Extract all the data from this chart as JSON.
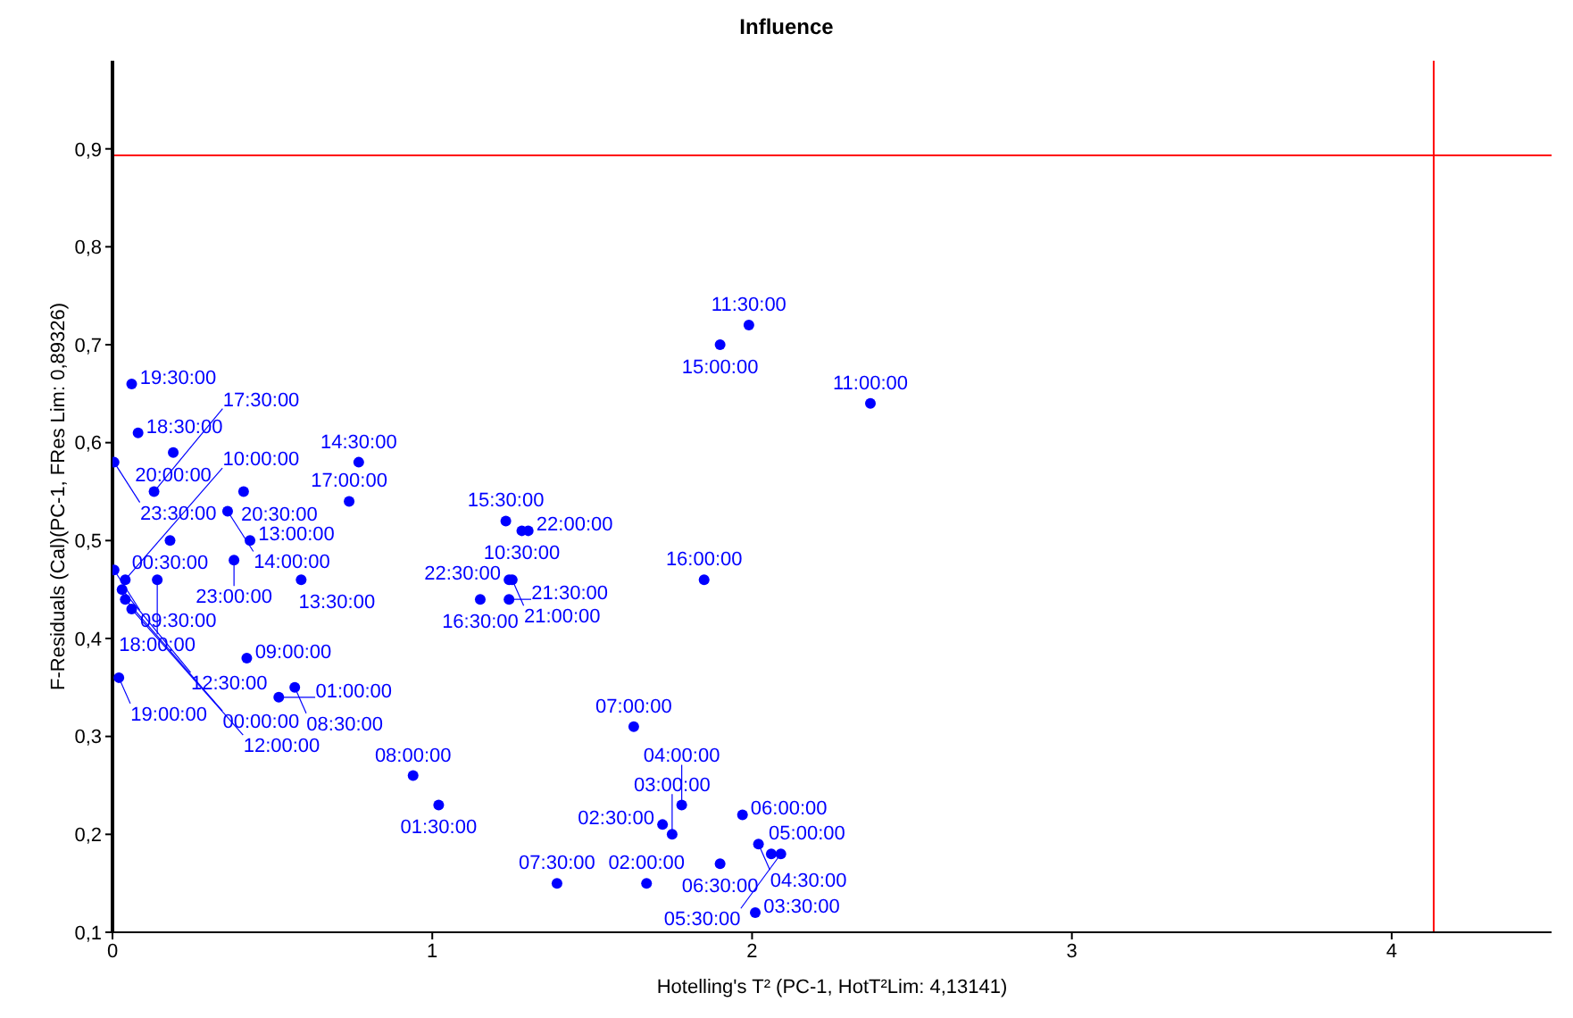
{
  "chart_data": {
    "type": "scatter",
    "title": "Influence",
    "xlabel": "Hotelling's T² (PC-1, HotT²Lim: 4,13141)",
    "ylabel": "F-Residuals (Cal)(PC-1, FRes Lim: 0,89326)",
    "xlim": [
      0,
      4.5
    ],
    "xticks": [
      0,
      1,
      2,
      3,
      4
    ],
    "ylim": [
      0.1,
      0.99
    ],
    "yticks": [
      {
        "value": 0.1,
        "label": "0,1"
      },
      {
        "value": 0.2,
        "label": "0,2"
      },
      {
        "value": 0.3,
        "label": "0,3"
      },
      {
        "value": 0.4,
        "label": "0,4"
      },
      {
        "value": 0.5,
        "label": "0,5"
      },
      {
        "value": 0.6,
        "label": "0,6"
      },
      {
        "value": 0.7,
        "label": "0,7"
      },
      {
        "value": 0.8,
        "label": "0,8"
      },
      {
        "value": 0.9,
        "label": "0,9"
      }
    ],
    "grid": false,
    "legend": false,
    "marker": "circle",
    "ref_lines": [
      {
        "axis": "x",
        "value": 4.13141,
        "color": "#ff0000"
      },
      {
        "axis": "y",
        "value": 0.89326,
        "color": "#ff0000"
      }
    ],
    "series": [
      {
        "color": "#0000ff",
        "x": [
          1.99,
          1.9,
          2.37,
          1.85,
          1.63,
          1.23,
          1.28,
          1.3,
          1.24,
          1.15,
          1.24,
          1.25,
          0.06,
          0.08,
          0.005,
          0.19,
          0.13,
          0.77,
          0.74,
          0.41,
          0.36,
          0.18,
          0.43,
          0.38,
          0.59,
          0.005,
          0.04,
          0.14,
          0.03,
          0.04,
          0.06,
          0.02,
          0.42,
          0.52,
          0.57,
          0.94,
          1.02,
          1.39,
          1.67,
          1.72,
          1.75,
          1.78,
          1.9,
          2.01,
          1.97,
          2.02,
          2.06,
          2.09
        ],
        "values": [
          0.72,
          0.7,
          0.64,
          0.46,
          0.31,
          0.52,
          0.51,
          0.51,
          0.46,
          0.44,
          0.44,
          0.46,
          0.66,
          0.61,
          0.58,
          0.59,
          0.55,
          0.58,
          0.54,
          0.55,
          0.53,
          0.5,
          0.5,
          0.48,
          0.46,
          0.47,
          0.46,
          0.46,
          0.45,
          0.44,
          0.43,
          0.36,
          0.38,
          0.34,
          0.35,
          0.26,
          0.23,
          0.15,
          0.15,
          0.21,
          0.2,
          0.23,
          0.17,
          0.12,
          0.22,
          0.19,
          0.18,
          0.18
        ]
      }
    ],
    "annotations": [
      {
        "text": "11:30:00",
        "x": 1.99,
        "y": 0.72
      },
      {
        "text": "15:00:00",
        "x": 1.9,
        "y": 0.7
      },
      {
        "text": "11:00:00",
        "x": 2.37,
        "y": 0.64
      },
      {
        "text": "16:00:00",
        "x": 1.85,
        "y": 0.46
      },
      {
        "text": "07:00:00",
        "x": 1.63,
        "y": 0.31
      },
      {
        "text": "15:30:00",
        "x": 1.23,
        "y": 0.52
      },
      {
        "text": "10:30:00",
        "x": 1.28,
        "y": 0.51
      },
      {
        "text": "22:00:00",
        "x": 1.3,
        "y": 0.51
      },
      {
        "text": "22:30:00",
        "x": 1.24,
        "y": 0.46
      },
      {
        "text": "16:30:00",
        "x": 1.15,
        "y": 0.44
      },
      {
        "text": "21:30:00",
        "x": 1.24,
        "y": 0.44
      },
      {
        "text": "21:00:00",
        "x": 1.25,
        "y": 0.46
      },
      {
        "text": "19:30:00",
        "x": 0.06,
        "y": 0.66
      },
      {
        "text": "18:30:00",
        "x": 0.08,
        "y": 0.61
      },
      {
        "text": "23:30:00",
        "x": 0.005,
        "y": 0.58
      },
      {
        "text": "20:00:00",
        "x": 0.19,
        "y": 0.59
      },
      {
        "text": "17:30:00",
        "x": 0.13,
        "y": 0.55
      },
      {
        "text": "14:30:00",
        "x": 0.77,
        "y": 0.58
      },
      {
        "text": "17:00:00",
        "x": 0.74,
        "y": 0.54
      },
      {
        "text": "20:30:00",
        "x": 0.41,
        "y": 0.55
      },
      {
        "text": "14:00:00",
        "x": 0.36,
        "y": 0.53
      },
      {
        "text": "00:30:00",
        "x": 0.18,
        "y": 0.5
      },
      {
        "text": "13:00:00",
        "x": 0.43,
        "y": 0.5
      },
      {
        "text": "23:00:00",
        "x": 0.38,
        "y": 0.48
      },
      {
        "text": "13:30:00",
        "x": 0.59,
        "y": 0.46
      },
      {
        "text": "09:30:00",
        "x": 0.005,
        "y": 0.47
      },
      {
        "text": "10:00:00",
        "x": 0.04,
        "y": 0.46
      },
      {
        "text": "18:00:00",
        "x": 0.14,
        "y": 0.46
      },
      {
        "text": "12:30:00",
        "x": 0.03,
        "y": 0.45
      },
      {
        "text": "00:00:00",
        "x": 0.04,
        "y": 0.44
      },
      {
        "text": "12:00:00",
        "x": 0.06,
        "y": 0.43
      },
      {
        "text": "19:00:00",
        "x": 0.02,
        "y": 0.36
      },
      {
        "text": "09:00:00",
        "x": 0.42,
        "y": 0.38
      },
      {
        "text": "01:00:00",
        "x": 0.52,
        "y": 0.34
      },
      {
        "text": "08:30:00",
        "x": 0.57,
        "y": 0.35
      },
      {
        "text": "08:00:00",
        "x": 0.94,
        "y": 0.26
      },
      {
        "text": "01:30:00",
        "x": 1.02,
        "y": 0.23
      },
      {
        "text": "07:30:00",
        "x": 1.39,
        "y": 0.15
      },
      {
        "text": "02:00:00",
        "x": 1.67,
        "y": 0.15
      },
      {
        "text": "02:30:00",
        "x": 1.72,
        "y": 0.21
      },
      {
        "text": "03:00:00",
        "x": 1.75,
        "y": 0.2
      },
      {
        "text": "04:00:00",
        "x": 1.78,
        "y": 0.23
      },
      {
        "text": "06:30:00",
        "x": 1.9,
        "y": 0.17
      },
      {
        "text": "03:30:00",
        "x": 2.01,
        "y": 0.12
      },
      {
        "text": "06:00:00",
        "x": 1.97,
        "y": 0.22
      },
      {
        "text": "04:30:00",
        "x": 2.02,
        "y": 0.19
      },
      {
        "text": "05:00:00",
        "x": 2.06,
        "y": 0.18
      },
      {
        "text": "05:30:00",
        "x": 2.09,
        "y": 0.18
      }
    ]
  }
}
